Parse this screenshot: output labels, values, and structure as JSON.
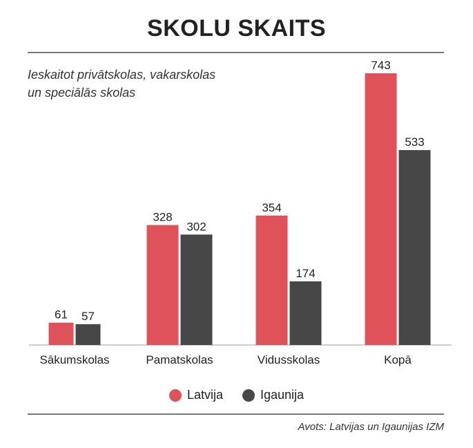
{
  "title": "SKOLU SKAITS",
  "subtitle_lines": [
    "Ieskaitot privātskolas, vakarskolas",
    "un speciālās skolas"
  ],
  "source": "Avots: Latvijas un Igaunijas IZM",
  "colors": {
    "latvija": "#e0525a",
    "igaunija": "#474747",
    "axis": "#bdbdbd"
  },
  "legend": [
    {
      "label": "Latvija",
      "color": "#e0525a"
    },
    {
      "label": "Igaunija",
      "color": "#474747"
    }
  ],
  "chart_data": {
    "type": "bar",
    "categories": [
      "Sākumskolas",
      "Pamatskolas",
      "Vidusskolas",
      "Kopā"
    ],
    "series": [
      {
        "name": "Latvija",
        "values": [
          61,
          328,
          354,
          743
        ]
      },
      {
        "name": "Igaunija",
        "values": [
          57,
          302,
          174,
          533
        ]
      }
    ],
    "ylim": [
      0,
      743
    ],
    "grid": false,
    "legend_position": "bottom-center"
  }
}
